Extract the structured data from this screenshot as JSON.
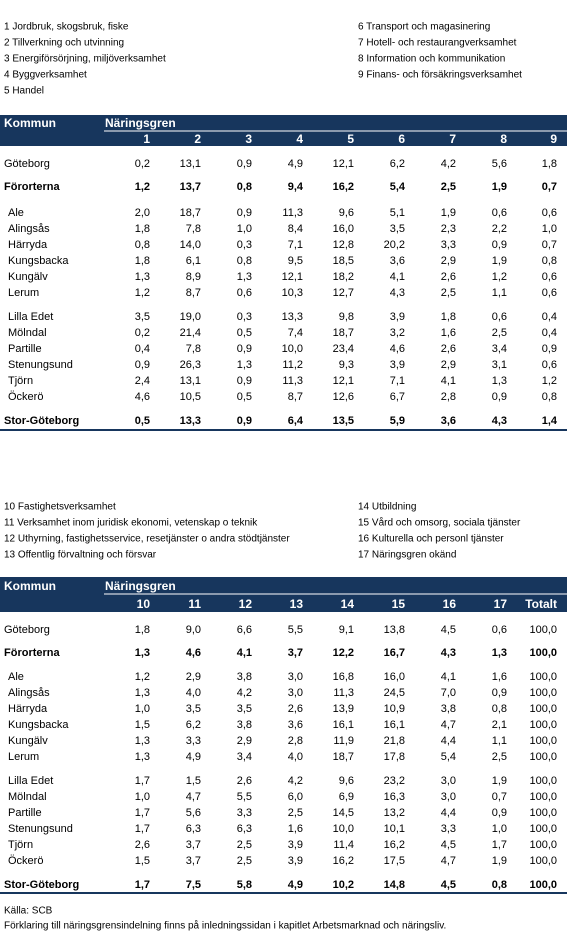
{
  "tables": [
    {
      "legend_left": [
        "1 Jordbruk, skogsbruk, fiske",
        "2 Tillverkning och utvinning",
        "3 Energiförsörjning, miljöverksamhet",
        "4 Byggverksamhet",
        "5 Handel"
      ],
      "legend_right": [
        "6 Transport och magasinering",
        "7 Hotell- och restaurangverksamhet",
        "8 Information och kommunikation",
        "9 Finans- och försäkringsverksamhet"
      ],
      "header": {
        "kommun": "Kommun",
        "group": "Näringsgren",
        "columns": [
          "1",
          "2",
          "3",
          "4",
          "5",
          "6",
          "7",
          "8",
          "9"
        ]
      },
      "rows": [
        {
          "name": "Göteborg",
          "cells": [
            "0,2",
            "13,1",
            "0,9",
            "4,9",
            "12,1",
            "6,2",
            "4,2",
            "5,6",
            "1,8"
          ]
        },
        {
          "name": "Förorterna",
          "cells": [
            "1,2",
            "13,7",
            "0,8",
            "9,4",
            "16,2",
            "5,4",
            "2,5",
            "1,9",
            "0,7"
          ]
        },
        {
          "name": "Ale",
          "cells": [
            "2,0",
            "18,7",
            "0,9",
            "11,3",
            "9,6",
            "5,1",
            "1,9",
            "0,6",
            "0,6"
          ]
        },
        {
          "name": "Alingsås",
          "cells": [
            "1,8",
            "7,8",
            "1,0",
            "8,4",
            "16,0",
            "3,5",
            "2,3",
            "2,2",
            "1,0"
          ]
        },
        {
          "name": "Härryda",
          "cells": [
            "0,8",
            "14,0",
            "0,3",
            "7,1",
            "12,8",
            "20,2",
            "3,3",
            "0,9",
            "0,7"
          ]
        },
        {
          "name": "Kungsbacka",
          "cells": [
            "1,8",
            "6,1",
            "0,8",
            "9,5",
            "18,5",
            "3,6",
            "2,9",
            "1,9",
            "0,8"
          ]
        },
        {
          "name": "Kungälv",
          "cells": [
            "1,3",
            "8,9",
            "1,3",
            "12,1",
            "18,2",
            "4,1",
            "2,6",
            "1,2",
            "0,6"
          ]
        },
        {
          "name": "Lerum",
          "cells": [
            "1,2",
            "8,7",
            "0,6",
            "10,3",
            "12,7",
            "4,3",
            "2,5",
            "1,1",
            "0,6"
          ]
        },
        {
          "name": "Lilla Edet",
          "cells": [
            "3,5",
            "19,0",
            "0,3",
            "13,3",
            "9,8",
            "3,9",
            "1,8",
            "0,6",
            "0,4"
          ]
        },
        {
          "name": "Mölndal",
          "cells": [
            "0,2",
            "21,4",
            "0,5",
            "7,4",
            "18,7",
            "3,2",
            "1,6",
            "2,5",
            "0,4"
          ]
        },
        {
          "name": "Partille",
          "cells": [
            "0,4",
            "7,8",
            "0,9",
            "10,0",
            "23,4",
            "4,6",
            "2,6",
            "3,4",
            "0,9"
          ]
        },
        {
          "name": "Stenungsund",
          "cells": [
            "0,9",
            "26,3",
            "1,3",
            "11,2",
            "9,3",
            "3,9",
            "2,9",
            "3,1",
            "0,6"
          ]
        },
        {
          "name": "Tjörn",
          "cells": [
            "2,4",
            "13,1",
            "0,9",
            "11,3",
            "12,1",
            "7,1",
            "4,1",
            "1,3",
            "1,2"
          ]
        },
        {
          "name": "Öckerö",
          "cells": [
            "4,6",
            "10,5",
            "0,5",
            "8,7",
            "12,6",
            "6,7",
            "2,8",
            "0,9",
            "0,8"
          ]
        },
        {
          "name": "Stor-Göteborg",
          "cells": [
            "0,5",
            "13,3",
            "0,9",
            "6,4",
            "13,5",
            "5,9",
            "3,6",
            "4,3",
            "1,4"
          ]
        }
      ]
    },
    {
      "legend_left": [
        "10 Fastighetsverksamhet",
        "11 Verksamhet inom juridisk ekonomi, vetenskap o teknik",
        "12 Uthyrning, fastighetsservice, resetjänster o andra stödtjänster",
        "13 Offentlig förvaltning och försvar"
      ],
      "legend_right": [
        "14 Utbildning",
        "15 Vård och omsorg, sociala tjänster",
        "16 Kulturella och personl tjänster",
        "17 Näringsgren okänd"
      ],
      "header": {
        "kommun": "Kommun",
        "group": "Näringsgren",
        "columns": [
          "10",
          "11",
          "12",
          "13",
          "14",
          "15",
          "16",
          "17",
          "Totalt"
        ]
      },
      "rows": [
        {
          "name": "Göteborg",
          "cells": [
            "1,8",
            "9,0",
            "6,6",
            "5,5",
            "9,1",
            "13,8",
            "4,5",
            "0,6",
            "100,0"
          ]
        },
        {
          "name": "Förorterna",
          "cells": [
            "1,3",
            "4,6",
            "4,1",
            "3,7",
            "12,2",
            "16,7",
            "4,3",
            "1,3",
            "100,0"
          ]
        },
        {
          "name": "Ale",
          "cells": [
            "1,2",
            "2,9",
            "3,8",
            "3,0",
            "16,8",
            "16,0",
            "4,1",
            "1,6",
            "100,0"
          ]
        },
        {
          "name": "Alingsås",
          "cells": [
            "1,3",
            "4,0",
            "4,2",
            "3,0",
            "11,3",
            "24,5",
            "7,0",
            "0,9",
            "100,0"
          ]
        },
        {
          "name": "Härryda",
          "cells": [
            "1,0",
            "3,5",
            "3,5",
            "2,6",
            "13,9",
            "10,9",
            "3,8",
            "0,8",
            "100,0"
          ]
        },
        {
          "name": "Kungsbacka",
          "cells": [
            "1,5",
            "6,2",
            "3,8",
            "3,6",
            "16,1",
            "16,1",
            "4,7",
            "2,1",
            "100,0"
          ]
        },
        {
          "name": "Kungälv",
          "cells": [
            "1,3",
            "3,3",
            "2,9",
            "2,8",
            "11,9",
            "21,8",
            "4,4",
            "1,1",
            "100,0"
          ]
        },
        {
          "name": "Lerum",
          "cells": [
            "1,3",
            "4,9",
            "3,4",
            "4,0",
            "18,7",
            "17,8",
            "5,4",
            "2,5",
            "100,0"
          ]
        },
        {
          "name": "Lilla Edet",
          "cells": [
            "1,7",
            "1,5",
            "2,6",
            "4,2",
            "9,6",
            "23,2",
            "3,0",
            "1,9",
            "100,0"
          ]
        },
        {
          "name": "Mölndal",
          "cells": [
            "1,0",
            "4,7",
            "5,5",
            "6,0",
            "6,9",
            "16,3",
            "3,0",
            "0,7",
            "100,0"
          ]
        },
        {
          "name": "Partille",
          "cells": [
            "1,7",
            "5,6",
            "3,3",
            "2,5",
            "14,5",
            "13,2",
            "4,4",
            "0,9",
            "100,0"
          ]
        },
        {
          "name": "Stenungsund",
          "cells": [
            "1,7",
            "6,3",
            "6,3",
            "1,6",
            "10,0",
            "10,1",
            "3,3",
            "1,0",
            "100,0"
          ]
        },
        {
          "name": "Tjörn",
          "cells": [
            "2,6",
            "3,7",
            "2,5",
            "3,9",
            "11,4",
            "16,2",
            "4,5",
            "1,7",
            "100,0"
          ]
        },
        {
          "name": "Öckerö",
          "cells": [
            "1,5",
            "3,7",
            "2,5",
            "3,9",
            "16,2",
            "17,5",
            "4,7",
            "1,9",
            "100,0"
          ]
        },
        {
          "name": "Stor-Göteborg",
          "cells": [
            "1,7",
            "7,5",
            "5,8",
            "4,9",
            "10,2",
            "14,8",
            "4,5",
            "0,8",
            "100,0"
          ]
        }
      ]
    }
  ],
  "footer": {
    "source": "Källa:  SCB",
    "note": "Förklaring till näringsgrensindelning finns på inledningssidan i kapitlet Arbetsmarknad och näringsliv."
  }
}
